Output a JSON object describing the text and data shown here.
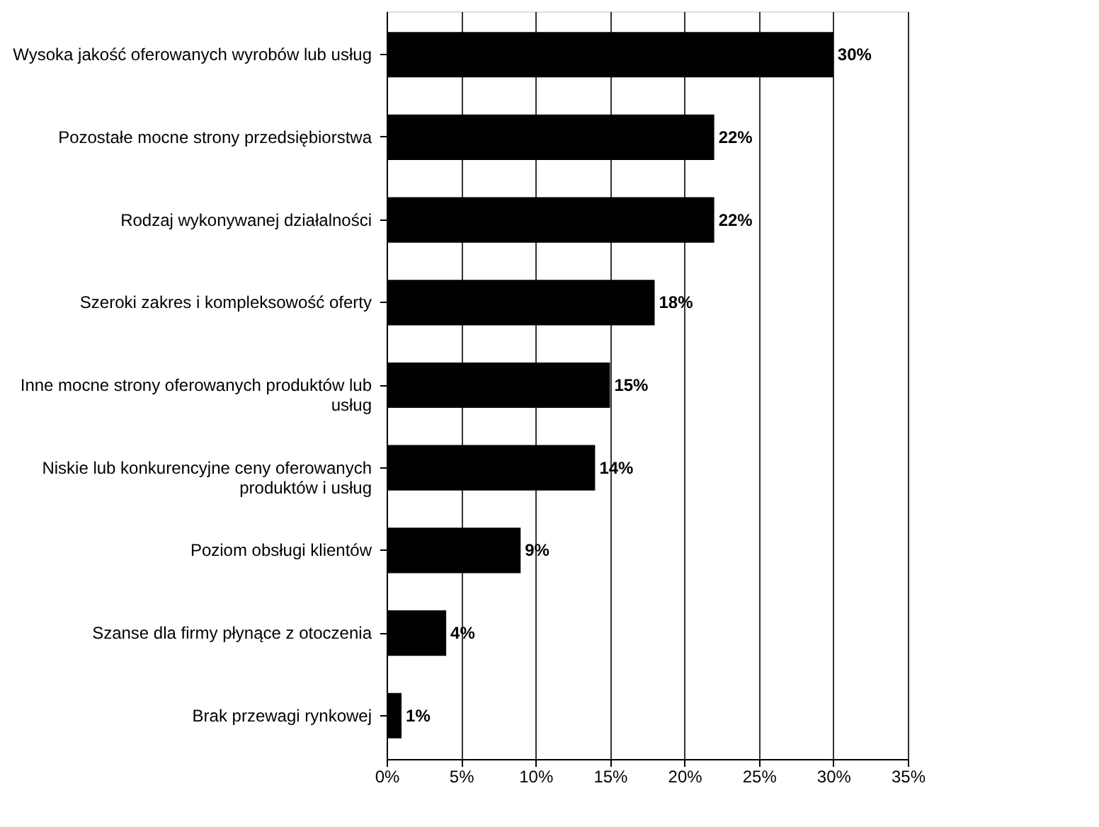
{
  "chart_data": {
    "type": "bar",
    "orientation": "horizontal",
    "categories": [
      "Wysoka jakość oferowanych wyrobów lub usług",
      "Pozostałe mocne strony przedsiębiorstwa",
      "Rodzaj wykonywanej działalności",
      "Szeroki zakres i kompleksowość oferty",
      "Inne mocne strony oferowanych produktów lub usług",
      "Niskie lub konkurencyjne ceny oferowanych produktów i usług",
      "Poziom obsługi klientów",
      "Szanse dla firmy płynące z otoczenia",
      "Brak przewagi rynkowej"
    ],
    "values": [
      30,
      22,
      22,
      18,
      15,
      14,
      9,
      4,
      1
    ],
    "value_labels": [
      "30%",
      "22%",
      "22%",
      "18%",
      "15%",
      "14%",
      "9%",
      "4%",
      "1%"
    ],
    "color": "#000000",
    "xlim": [
      0,
      35
    ],
    "xticks": [
      {
        "value": 0,
        "label": "0%"
      },
      {
        "value": 5,
        "label": "5%"
      },
      {
        "value": 10,
        "label": "10%"
      },
      {
        "value": 15,
        "label": "15%"
      },
      {
        "value": 20,
        "label": "20%"
      },
      {
        "value": 25,
        "label": "25%"
      },
      {
        "value": 30,
        "label": "30%"
      },
      {
        "value": 35,
        "label": "35%"
      }
    ],
    "grid": "x"
  }
}
